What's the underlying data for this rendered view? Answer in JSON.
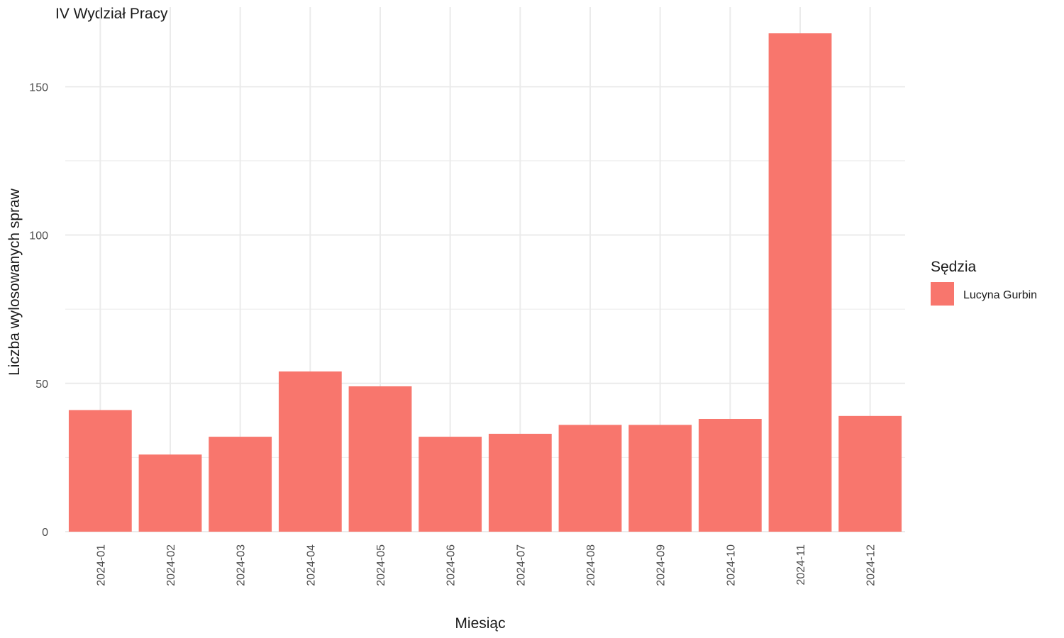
{
  "chart_data": {
    "type": "bar",
    "title": "IV Wydział Pracy",
    "xlabel": "Miesiąc",
    "ylabel": "Liczba wylosowanych spraw",
    "categories": [
      "2024-01",
      "2024-02",
      "2024-03",
      "2024-04",
      "2024-05",
      "2024-06",
      "2024-07",
      "2024-08",
      "2024-09",
      "2024-10",
      "2024-11",
      "2024-12"
    ],
    "series": [
      {
        "name": "Lucyna Gurbin",
        "color": "#F8766D",
        "values": [
          41,
          26,
          32,
          54,
          49,
          32,
          33,
          36,
          36,
          38,
          168,
          39
        ]
      }
    ],
    "ylim": [
      0,
      168
    ],
    "yticks": [
      0,
      50,
      100,
      150
    ],
    "ytick_labels": [
      "0",
      "50",
      "100",
      "150"
    ],
    "grid": true,
    "legend": {
      "title": "Sędzia",
      "position": "right"
    },
    "colors": {
      "grid": "#ebebeb",
      "bar": "#F8766D"
    }
  }
}
